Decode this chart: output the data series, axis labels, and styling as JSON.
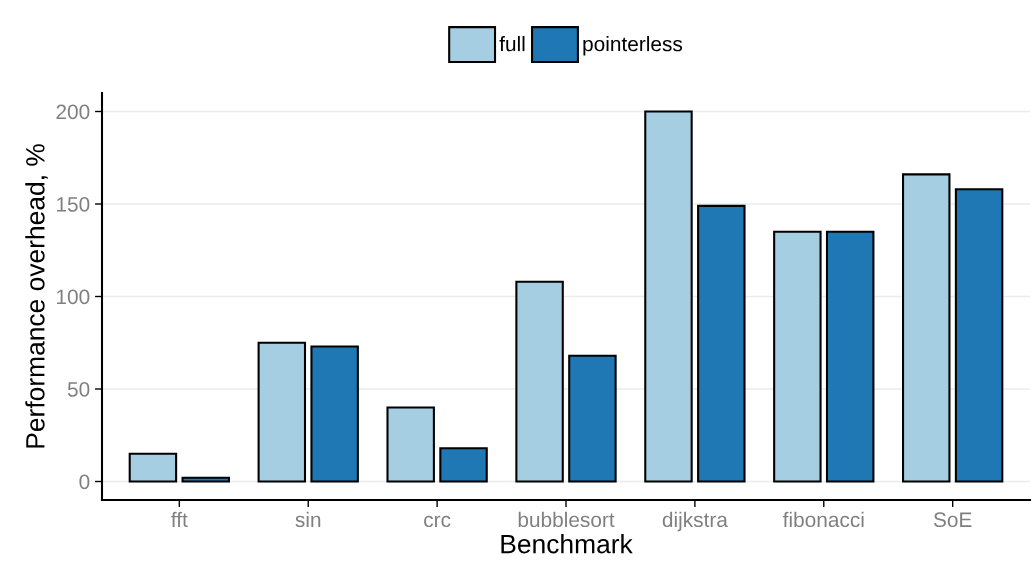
{
  "chart_data": {
    "type": "bar",
    "xlabel": "Benchmark",
    "ylabel": "Performance overhead, %",
    "categories": [
      "fft",
      "sin",
      "crc",
      "bubblesort",
      "dijkstra",
      "fibonacci",
      "SoE"
    ],
    "series": [
      {
        "name": "full",
        "color": "#a6cee3",
        "values": [
          15,
          75,
          40,
          108,
          200,
          135,
          166
        ]
      },
      {
        "name": "pointerless",
        "color": "#1f78b4",
        "values": [
          2,
          73,
          18,
          68,
          149,
          135,
          158
        ]
      }
    ],
    "ylim": [
      -10,
      210
    ],
    "yticks": [
      0,
      50,
      100,
      150,
      200
    ],
    "grid": "y",
    "legend": "top"
  }
}
